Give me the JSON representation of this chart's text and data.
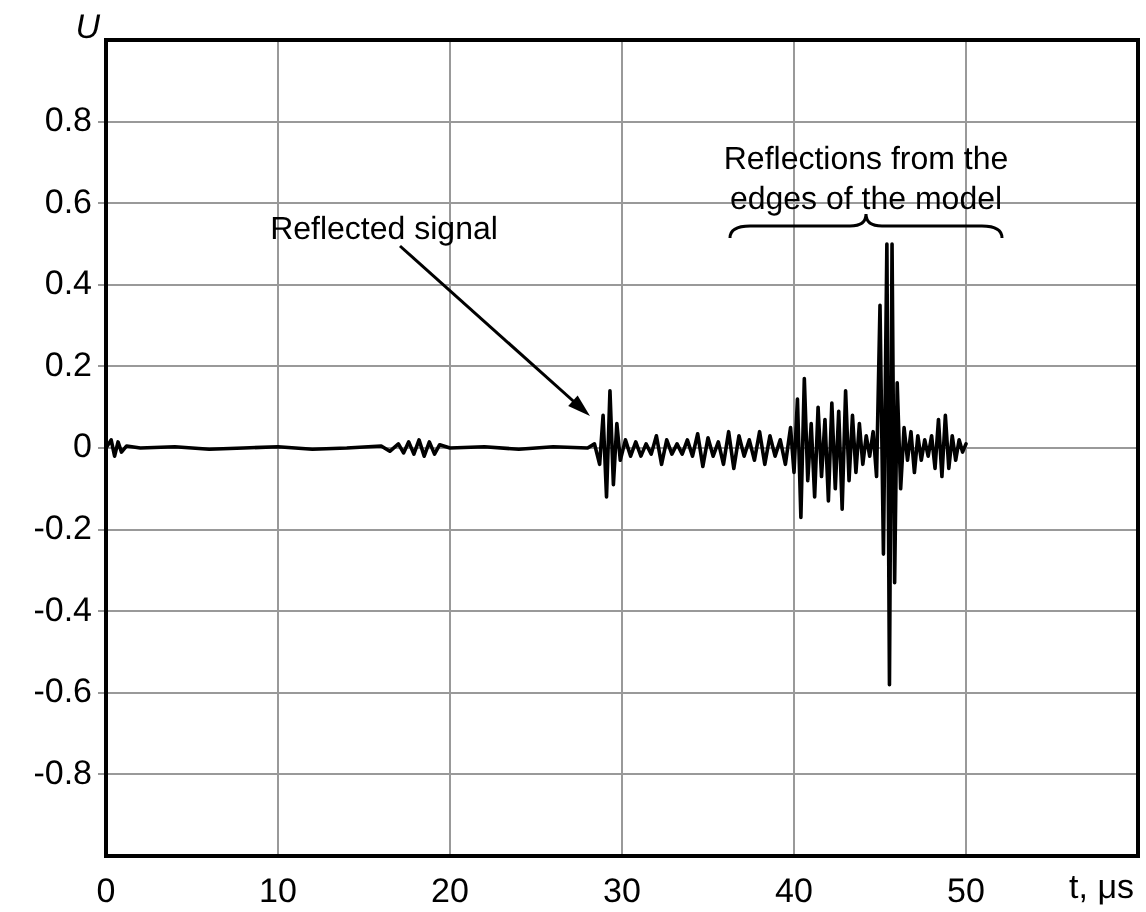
{
  "chart_data": {
    "type": "line",
    "xlabel": "t, μs",
    "ylabel": "U",
    "color": "#000000",
    "x": [
      0,
      0.3,
      0.5,
      0.7,
      0.9,
      1.2,
      2,
      4,
      6,
      8,
      10,
      12,
      14,
      16,
      16.5,
      17,
      17.3,
      17.6,
      17.9,
      18.2,
      18.5,
      18.8,
      19.1,
      19.4,
      20,
      22,
      24,
      26,
      28,
      28.4,
      28.7,
      28.9,
      29.1,
      29.3,
      29.5,
      29.7,
      29.9,
      30.2,
      30.5,
      30.8,
      31.1,
      31.4,
      31.7,
      32,
      32.3,
      32.6,
      32.9,
      33.2,
      33.5,
      33.8,
      34.1,
      34.4,
      34.7,
      35,
      35.3,
      35.6,
      35.9,
      36.2,
      36.5,
      36.8,
      37.1,
      37.4,
      37.7,
      38,
      38.3,
      38.6,
      38.9,
      39.2,
      39.5,
      39.8,
      40,
      40.2,
      40.4,
      40.6,
      40.8,
      41,
      41.2,
      41.4,
      41.6,
      41.8,
      42,
      42.2,
      42.4,
      42.6,
      42.8,
      43,
      43.2,
      43.4,
      43.6,
      43.8,
      44,
      44.2,
      44.4,
      44.6,
      44.8,
      45,
      45.2,
      45.4,
      45.55,
      45.7,
      45.85,
      46,
      46.2,
      46.4,
      46.6,
      46.8,
      47,
      47.2,
      47.4,
      47.6,
      47.8,
      48,
      48.2,
      48.4,
      48.6,
      48.8,
      49,
      49.2,
      49.4,
      49.6,
      49.8,
      50
    ],
    "values": [
      0,
      0.02,
      -0.02,
      0.015,
      -0.01,
      0.005,
      0,
      0.003,
      -0.003,
      0,
      0.003,
      -0.003,
      0,
      0.005,
      -0.008,
      0.01,
      -0.012,
      0.015,
      -0.015,
      0.02,
      -0.02,
      0.015,
      -0.015,
      0.008,
      0,
      0.003,
      -0.003,
      0.003,
      0,
      0.01,
      -0.04,
      0.08,
      -0.12,
      0.14,
      -0.09,
      0.06,
      -0.03,
      0.02,
      -0.02,
      0.015,
      -0.02,
      0.01,
      -0.015,
      0.03,
      -0.04,
      0.02,
      -0.015,
      0.01,
      -0.015,
      0.02,
      -0.02,
      0.035,
      -0.045,
      0.025,
      -0.02,
      0.015,
      -0.04,
      0.04,
      -0.05,
      0.03,
      -0.02,
      0.02,
      -0.03,
      0.04,
      -0.04,
      0.03,
      -0.02,
      0.02,
      -0.04,
      0.05,
      -0.06,
      0.12,
      -0.17,
      0.17,
      -0.08,
      0.06,
      -0.12,
      0.1,
      -0.07,
      0.07,
      -0.13,
      0.11,
      -0.1,
      0.09,
      -0.15,
      0.14,
      -0.08,
      0.08,
      -0.06,
      0.06,
      -0.04,
      0.03,
      -0.02,
      0.04,
      -0.07,
      0.35,
      -0.26,
      0.5,
      -0.58,
      0.5,
      -0.33,
      0.16,
      -0.1,
      0.05,
      -0.03,
      0.04,
      -0.06,
      0.03,
      -0.03,
      0.02,
      -0.02,
      0.03,
      -0.05,
      0.07,
      -0.07,
      0.08,
      -0.05,
      0.03,
      -0.03,
      0.02,
      -0.01,
      0.01
    ],
    "xlim": [
      0,
      60
    ],
    "xticks": [
      0,
      10,
      20,
      30,
      40,
      50
    ],
    "ylim": [
      -1,
      1
    ],
    "yticks": [
      -0.8,
      -0.6,
      -0.4,
      -0.2,
      0,
      0.2,
      0.4,
      0.6,
      0.8
    ],
    "grid": true,
    "legend": false,
    "marker": "none",
    "line_style": "solid",
    "annotations": [
      "Reflected signal",
      "Reflections from the\nedges of the model"
    ]
  }
}
